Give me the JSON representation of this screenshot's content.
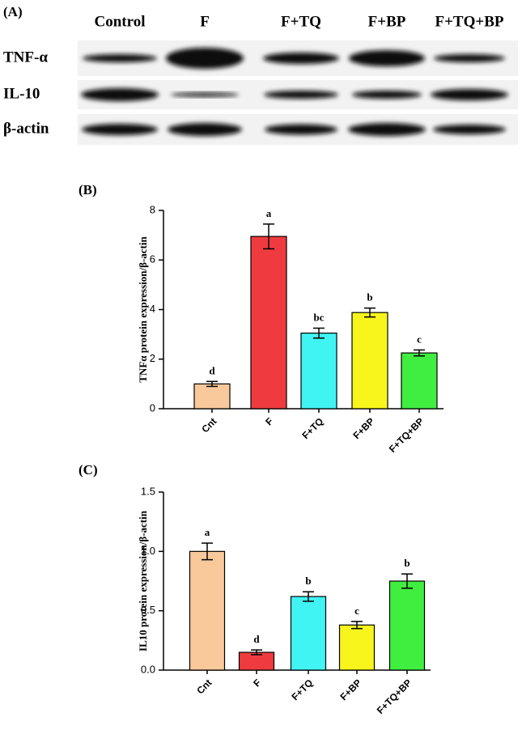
{
  "blot": {
    "label": "(A)",
    "columns": [
      "Control",
      "F",
      "F+TQ",
      "F+BP",
      "F+TQ+BP"
    ],
    "rows": [
      "TNF-α",
      "IL-10",
      "β-actin"
    ]
  },
  "chart_data": [
    {
      "type": "bar",
      "title": "(B)",
      "y_label": "TNFα protein expression/β-actin",
      "categories": [
        "Cnt",
        "F",
        "F+TQ",
        "F+BP",
        "F+TQ+BP"
      ],
      "values": [
        1.0,
        6.95,
        3.05,
        3.88,
        2.25
      ],
      "errors": [
        0.1,
        0.5,
        0.2,
        0.18,
        0.12
      ],
      "annotations": [
        "d",
        "a",
        "bc",
        "b",
        "c"
      ],
      "colors": [
        "#f9c89b",
        "#ef3b3f",
        "#40f4f4",
        "#f7f51c",
        "#40ee40"
      ],
      "ylim": [
        0,
        8
      ],
      "yticks": [
        0,
        2,
        4,
        6,
        8
      ]
    },
    {
      "type": "bar",
      "title": "(C)",
      "y_label": "IL10 protein expression/β-actin",
      "categories": [
        "Cnt",
        "F",
        "F+TQ",
        "F+BP",
        "F+TQ+BP"
      ],
      "values": [
        1.0,
        0.15,
        0.62,
        0.38,
        0.75
      ],
      "errors": [
        0.07,
        0.02,
        0.04,
        0.03,
        0.06
      ],
      "annotations": [
        "a",
        "d",
        "b",
        "c",
        "b"
      ],
      "colors": [
        "#f9c89b",
        "#ef3b3f",
        "#40f4f4",
        "#f7f51c",
        "#40ee40"
      ],
      "ylim": [
        0,
        1.5
      ],
      "yticks": [
        {
          "value": 0,
          "label": "0.0"
        },
        0.5,
        {
          "value": 1,
          "label": "1.0"
        },
        1.5
      ]
    }
  ]
}
